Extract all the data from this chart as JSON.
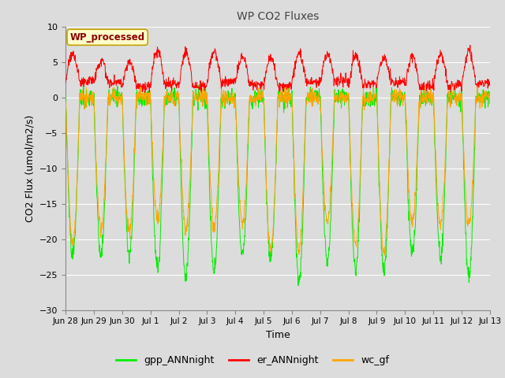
{
  "title": "WP CO2 Fluxes",
  "xlabel": "Time",
  "ylabel_display": "CO2 Flux (umol/m2/s)",
  "ylim": [
    -30,
    10
  ],
  "yticks": [
    -30,
    -25,
    -20,
    -15,
    -10,
    -5,
    0,
    5,
    10
  ],
  "fig_facecolor": "#dcdcdc",
  "plot_bg_color": "#dcdcdc",
  "colors": {
    "gpp": "#00ee00",
    "er": "#ff0000",
    "wc": "#ffa500"
  },
  "legend_labels": [
    "gpp_ANNnight",
    "er_ANNnight",
    "wc_gf"
  ],
  "watermark_text": "WP_processed",
  "watermark_color": "#8b0000",
  "watermark_bg": "#ffffcc",
  "n_days": 15,
  "points_per_day": 96,
  "tick_labels": [
    "Jun 28",
    "Jun 29",
    "Jun 30",
    "Jul 1",
    "Jul 2",
    "Jul 3",
    "Jul 4",
    "Jul 5",
    "Jul 6",
    "Jul 7",
    "Jul 8",
    "Jul 9",
    "Jul 10",
    "Jul 11",
    "Jul 12",
    "Jul 13"
  ]
}
